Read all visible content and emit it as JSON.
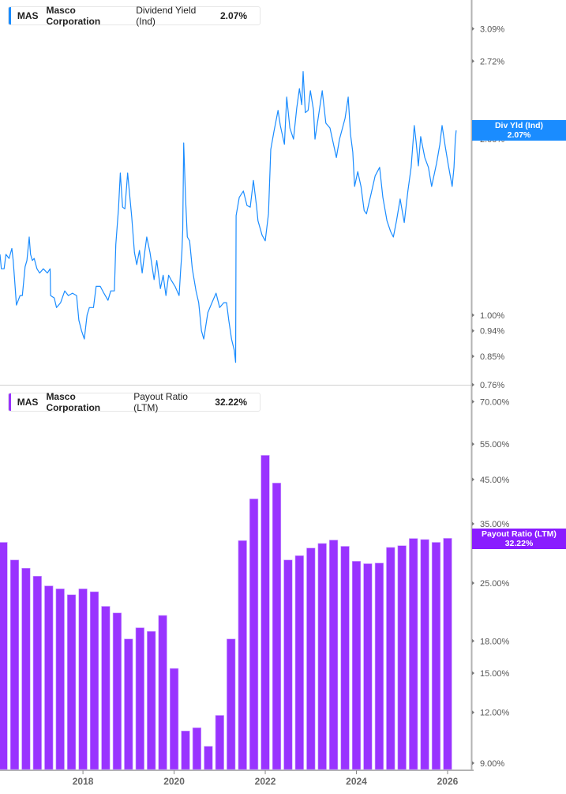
{
  "top_legend": {
    "ticker": "MAS",
    "company": "Masco Corporation",
    "metric": "Dividend Yield (Ind)",
    "value": "2.07%"
  },
  "bottom_legend": {
    "ticker": "MAS",
    "company": "Masco Corporation",
    "metric": "Payout Ratio (LTM)",
    "value": "32.22%"
  },
  "top_tag": {
    "label": "Div Yld (Ind)",
    "value": "2.07%"
  },
  "bottom_tag": {
    "label": "Payout Ratio (LTM)",
    "value": "32.22%"
  },
  "colors": {
    "yield": "#1a8cff",
    "payout": "#9933ff",
    "payout_tag": "#8a1cff"
  },
  "x_ticks": [
    "2018",
    "2020",
    "2022",
    "2024",
    "2026"
  ],
  "chart_data": [
    {
      "type": "line",
      "series": [
        {
          "name": "Dividend Yield (Ind)",
          "unit": "%",
          "x": [
            2016.18,
            2016.21,
            2016.27,
            2016.31,
            2016.38,
            2016.44,
            2016.47,
            2016.5,
            2016.54,
            2016.62,
            2016.67,
            2016.73,
            2016.77,
            2016.82,
            2016.85,
            2016.89,
            2016.93,
            2016.99,
            2017.05,
            2017.13,
            2017.22,
            2017.28,
            2017.29,
            2017.37,
            2017.42,
            2017.51,
            2017.6,
            2017.68,
            2017.77,
            2017.86,
            2017.91,
            2017.97,
            2018.03,
            2018.09,
            2018.14,
            2018.23,
            2018.29,
            2018.38,
            2018.46,
            2018.55,
            2018.61,
            2018.69,
            2018.72,
            2018.78,
            2018.82,
            2018.87,
            2018.92,
            2018.98,
            2019.02,
            2019.07,
            2019.13,
            2019.18,
            2019.24,
            2019.3,
            2019.36,
            2019.4,
            2019.47,
            2019.56,
            2019.62,
            2019.7,
            2019.76,
            2019.82,
            2019.88,
            2019.93,
            2020.02,
            2020.11,
            2020.14,
            2020.17,
            2020.19,
            2020.21,
            2020.25,
            2020.29,
            2020.34,
            2020.4,
            2020.48,
            2020.54,
            2020.6,
            2020.65,
            2020.74,
            2020.83,
            2020.92,
            2021.0,
            2021.09,
            2021.15,
            2021.2,
            2021.26,
            2021.32,
            2021.35,
            2021.36,
            2021.43,
            2021.52,
            2021.6,
            2021.67,
            2021.74,
            2021.81,
            2021.84,
            2021.93,
            2022.0,
            2022.07,
            2022.12,
            2022.19,
            2022.28,
            2022.33,
            2022.42,
            2022.47,
            2022.54,
            2022.62,
            2022.69,
            2022.75,
            2022.8,
            2022.83,
            2022.88,
            2022.94,
            2022.99,
            2023.06,
            2023.09,
            2023.16,
            2023.25,
            2023.33,
            2023.42,
            2023.51,
            2023.56,
            2023.63,
            2023.75,
            2023.82,
            2023.87,
            2023.92,
            2023.96,
            2024.03,
            2024.1,
            2024.17,
            2024.22,
            2024.32,
            2024.41,
            2024.51,
            2024.58,
            2024.67,
            2024.75,
            2024.81,
            2024.88,
            2024.96,
            2025.05,
            2025.13,
            2025.2,
            2025.27,
            2025.31,
            2025.36,
            2025.41,
            2025.5,
            2025.58,
            2025.65,
            2025.76,
            2025.83,
            2025.88,
            2025.95,
            2026.02,
            2026.1,
            2026.14,
            2026.17,
            2026.19
          ],
          "y": [
            1.27,
            1.2,
            1.2,
            1.27,
            1.25,
            1.3,
            1.24,
            1.15,
            1.04,
            1.08,
            1.08,
            1.21,
            1.24,
            1.36,
            1.27,
            1.24,
            1.25,
            1.2,
            1.18,
            1.2,
            1.18,
            1.2,
            1.08,
            1.07,
            1.03,
            1.05,
            1.1,
            1.08,
            1.09,
            1.08,
            0.98,
            0.94,
            0.91,
            1.0,
            1.03,
            1.03,
            1.12,
            1.12,
            1.09,
            1.06,
            1.1,
            1.1,
            1.32,
            1.52,
            1.75,
            1.53,
            1.52,
            1.75,
            1.62,
            1.47,
            1.28,
            1.22,
            1.29,
            1.18,
            1.29,
            1.36,
            1.28,
            1.15,
            1.24,
            1.11,
            1.17,
            1.08,
            1.17,
            1.15,
            1.12,
            1.08,
            1.18,
            1.28,
            1.4,
            1.97,
            1.59,
            1.36,
            1.34,
            1.2,
            1.1,
            1.05,
            0.94,
            0.91,
            1.01,
            1.05,
            1.09,
            1.03,
            1.05,
            1.05,
            0.98,
            0.91,
            0.87,
            0.83,
            1.48,
            1.59,
            1.63,
            1.54,
            1.53,
            1.7,
            1.53,
            1.45,
            1.37,
            1.34,
            1.49,
            1.92,
            2.06,
            2.24,
            2.11,
            1.96,
            2.36,
            2.09,
            2.0,
            2.26,
            2.44,
            2.29,
            2.61,
            2.22,
            2.24,
            2.42,
            2.24,
            2.0,
            2.17,
            2.42,
            2.13,
            2.09,
            1.94,
            1.86,
            2.0,
            2.17,
            2.36,
            2.04,
            1.9,
            1.66,
            1.76,
            1.66,
            1.51,
            1.49,
            1.61,
            1.73,
            1.79,
            1.59,
            1.45,
            1.39,
            1.36,
            1.45,
            1.58,
            1.44,
            1.63,
            1.79,
            2.11,
            1.98,
            1.8,
            2.02,
            1.86,
            1.79,
            1.66,
            1.82,
            1.96,
            2.11,
            1.94,
            1.8,
            1.66,
            1.79,
            2.0,
            2.07
          ]
        }
      ],
      "y_scale": "log",
      "ylim": [
        0.76,
        3.46
      ],
      "xlim": [
        2016.18,
        2026.52
      ],
      "y_ticks": [
        "3.09%",
        "2.72%",
        "2.00%",
        "1.00%",
        "0.94%",
        "0.85%",
        "0.76%"
      ],
      "y_tick_values": [
        3.09,
        2.72,
        2.0,
        1.0,
        0.94,
        0.85,
        0.76
      ],
      "grid": false,
      "legend": "top-left"
    },
    {
      "type": "bar",
      "series": [
        {
          "name": "Payout Ratio (LTM)",
          "unit": "%",
          "x": [
            2016.25,
            2016.5,
            2016.75,
            2017.0,
            2017.25,
            2017.5,
            2017.75,
            2018.0,
            2018.25,
            2018.5,
            2018.75,
            2019.0,
            2019.25,
            2019.5,
            2019.75,
            2020.0,
            2020.25,
            2020.5,
            2020.75,
            2021.0,
            2021.25,
            2021.5,
            2021.75,
            2022.0,
            2022.25,
            2022.5,
            2022.75,
            2023.0,
            2023.25,
            2023.5,
            2023.75,
            2024.0,
            2024.25,
            2024.5,
            2024.75,
            2025.0,
            2025.25,
            2025.5,
            2025.75,
            2026.0
          ],
          "values": [
            31.5,
            28.5,
            27.2,
            26.0,
            24.6,
            24.2,
            23.4,
            24.2,
            23.8,
            21.9,
            21.1,
            18.2,
            19.4,
            19.0,
            20.8,
            15.4,
            10.8,
            11.0,
            9.9,
            11.8,
            18.2,
            31.8,
            40.3,
            51.6,
            44.1,
            28.5,
            29.2,
            30.5,
            31.3,
            31.9,
            30.8,
            28.3,
            27.9,
            28.0,
            30.6,
            30.9,
            32.2,
            32.0,
            31.5,
            32.22
          ]
        }
      ],
      "y_scale": "log",
      "ylim": [
        8.64,
        76
      ],
      "xlim": [
        2016.18,
        2026.52
      ],
      "y_ticks": [
        "70.00%",
        "55.00%",
        "45.00%",
        "35.00%",
        "25.00%",
        "18.00%",
        "15.00%",
        "12.00%",
        "9.00%"
      ],
      "y_tick_values": [
        70,
        55,
        45,
        35,
        25,
        18,
        15,
        12,
        9
      ],
      "x_ticks": [
        "2018",
        "2020",
        "2022",
        "2024",
        "2026"
      ],
      "x_tick_values": [
        2018,
        2020,
        2022,
        2024,
        2026
      ],
      "grid": false,
      "legend": "top-left"
    }
  ]
}
